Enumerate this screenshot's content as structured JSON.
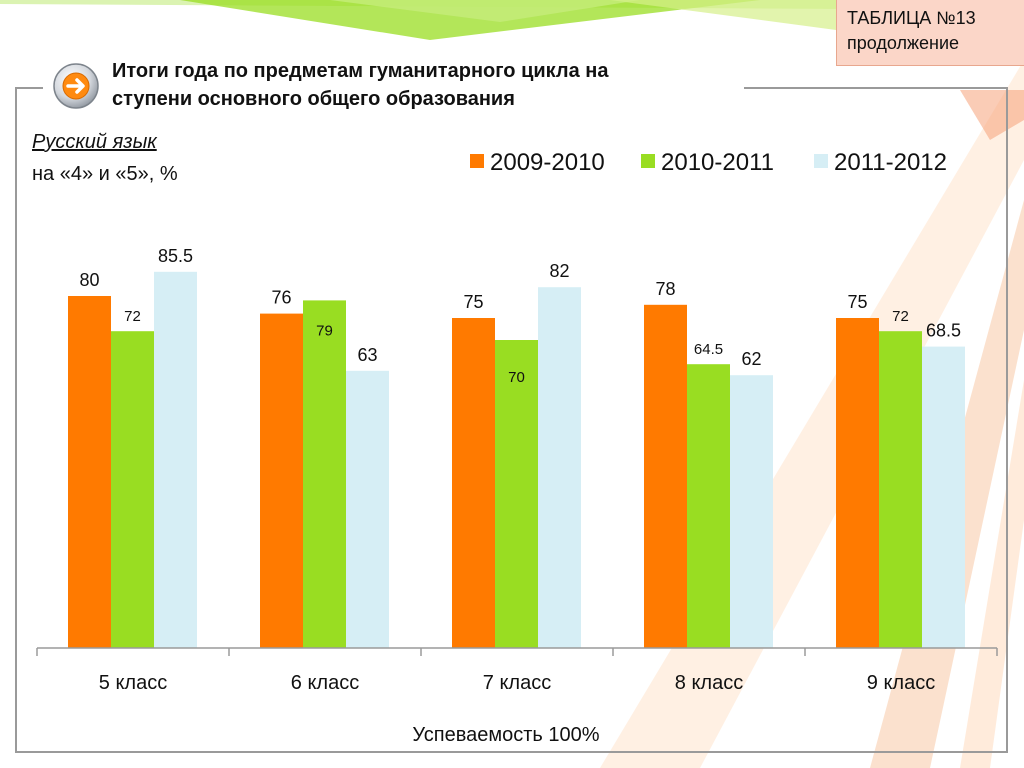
{
  "header": {
    "tag_line1": "ТАБЛИЦА №13",
    "tag_line2": "продолжение",
    "title_line1": "Итоги года по предметам гуманитарного цикла на",
    "title_line2": "ступени основного общего образования"
  },
  "subject": "Русский язык",
  "metric": "на «4» и «5», %",
  "footnote": "Успеваемость 100%",
  "icons": {
    "nav": "arrow-right-icon"
  },
  "colors": {
    "s2009": "#ff7a00",
    "s2010": "#99dd22",
    "s2011": "#d6eef5"
  },
  "chart_data": {
    "type": "bar",
    "categories": [
      "5 класс",
      "6 класс",
      "7 класс",
      "8 класс",
      "9 класс"
    ],
    "series": [
      {
        "name": "2009-2010",
        "values": [
          80,
          76,
          75,
          78,
          75
        ]
      },
      {
        "name": "2010-2011",
        "values": [
          72,
          79,
          70,
          64.5,
          72
        ]
      },
      {
        "name": "2011-2012",
        "values": [
          85.5,
          63,
          82,
          62,
          68.5
        ]
      }
    ],
    "value_labels": [
      [
        "80",
        "76",
        "75",
        "78",
        "75"
      ],
      [
        "72",
        "79",
        "70",
        "64.5",
        "72"
      ],
      [
        "85.5",
        "63",
        "82",
        "62",
        "68.5"
      ]
    ],
    "ylim": [
      0,
      100
    ],
    "grid": false,
    "legend": "top-right"
  }
}
